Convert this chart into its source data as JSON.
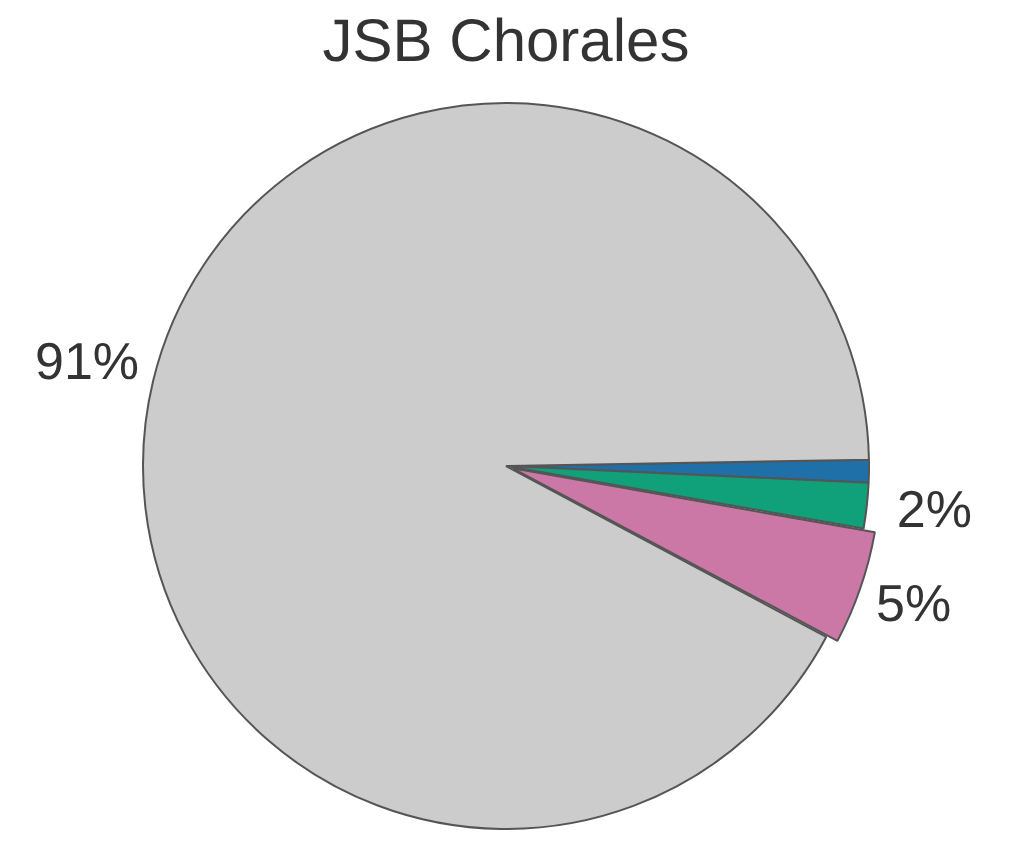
{
  "chart_data": {
    "type": "pie",
    "title": "JSB Chorales",
    "categories": [
      null,
      null,
      null,
      null
    ],
    "values": [
      1,
      2,
      5,
      91
    ],
    "colors": [
      "#1f6fa8",
      "#10a07a",
      "#cc78a7",
      "#cccccc"
    ],
    "value_labels": [
      null,
      "2%",
      "5%",
      "91%"
    ],
    "legend": false
  }
}
